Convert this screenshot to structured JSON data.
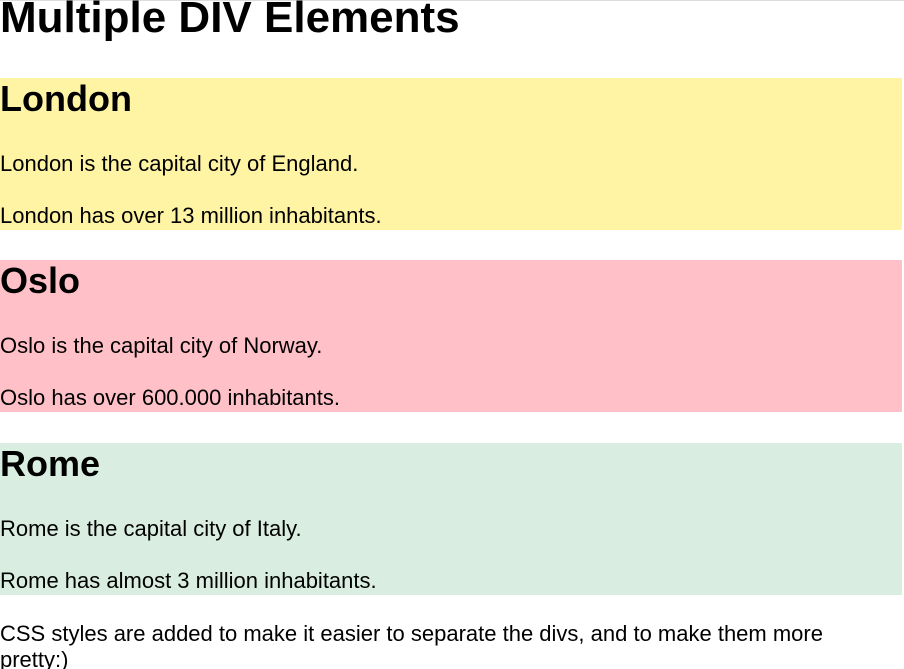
{
  "page": {
    "title": "Multiple DIV Elements"
  },
  "cities": [
    {
      "name": "London",
      "line1": "London is the capital city of England.",
      "line2": "London has over 13 million inhabitants.",
      "background": "#fff4a3"
    },
    {
      "name": "Oslo",
      "line1": "Oslo is the capital city of Norway.",
      "line2": "Oslo has over 600.000 inhabitants.",
      "background": "#ffc0c7"
    },
    {
      "name": "Rome",
      "line1": "Rome is the capital city of Italy.",
      "line2": "Rome has almost 3 million inhabitants.",
      "background": "#d9eee1"
    }
  ],
  "footer": {
    "text": "CSS styles are added to make it easier to separate the divs, and to make them more pretty:)"
  }
}
